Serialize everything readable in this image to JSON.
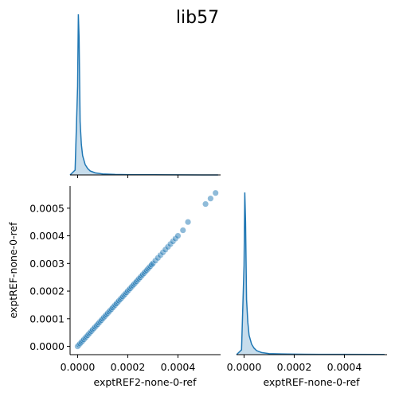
{
  "chart_data": {
    "type": "scatter",
    "title": "lib57",
    "layout": "pairplot-corner",
    "variables": [
      "exptREF2-none-0-ref",
      "exptREF-none-0-ref"
    ],
    "xlabel": "exptREF2-none-0-ref",
    "ylabel": "exptREF-none-0-ref",
    "xlabel2": "exptREF-none-0-ref",
    "xlim": [
      -3e-05,
      0.00057
    ],
    "ylim": [
      -3e-05,
      0.00058
    ],
    "xticks": [
      "0.0000",
      "0.0002",
      "0.0004"
    ],
    "yticks": [
      "0.0000",
      "0.0001",
      "0.0002",
      "0.0003",
      "0.0004",
      "0.0005"
    ],
    "xtick_values": [
      0,
      0.0002,
      0.0004
    ],
    "ytick_values": [
      0,
      0.0001,
      0.0002,
      0.0003,
      0.0004,
      0.0005
    ],
    "color": "#1f77b4",
    "grid": false,
    "scatter_points": {
      "x": [
        0.0,
        5e-06,
        1e-05,
        1.5e-05,
        2e-05,
        2.5e-05,
        3e-05,
        3.5e-05,
        4e-05,
        4.5e-05,
        5e-05,
        5.5e-05,
        6e-05,
        6.5e-05,
        7e-05,
        7.5e-05,
        8e-05,
        8.5e-05,
        9e-05,
        9.5e-05,
        0.0001,
        0.000105,
        0.00011,
        0.000115,
        0.00012,
        0.000125,
        0.00013,
        0.000135,
        0.00014,
        0.000145,
        0.00015,
        0.000155,
        0.00016,
        0.000165,
        0.00017,
        0.000175,
        0.00018,
        0.000185,
        0.00019,
        0.000195,
        0.0002,
        0.000205,
        0.00021,
        0.000215,
        0.00022,
        0.000225,
        0.00023,
        0.000235,
        0.00024,
        0.000245,
        0.00025,
        0.000255,
        0.00026,
        0.000265,
        0.00027,
        0.000275,
        0.00028,
        0.000285,
        0.00029,
        0.000295,
        0.0003,
        0.00031,
        0.00032,
        0.00033,
        0.00034,
        0.00035,
        0.00036,
        0.00037,
        0.00038,
        0.00039,
        0.0004,
        0.00042,
        0.00044,
        0.00051,
        0.00053,
        0.00055
      ],
      "y": [
        0.0,
        5e-06,
        1e-05,
        1.5e-05,
        2e-05,
        2.5e-05,
        3e-05,
        3.5e-05,
        4e-05,
        4.5e-05,
        5e-05,
        5.5e-05,
        6e-05,
        6.5e-05,
        7e-05,
        7.5e-05,
        8e-05,
        8.5e-05,
        9e-05,
        9.5e-05,
        0.0001,
        0.000105,
        0.00011,
        0.000115,
        0.00012,
        0.000125,
        0.00013,
        0.000135,
        0.00014,
        0.000145,
        0.00015,
        0.000155,
        0.00016,
        0.000165,
        0.00017,
        0.000175,
        0.00018,
        0.000185,
        0.00019,
        0.000195,
        0.0002,
        0.000205,
        0.00021,
        0.000215,
        0.00022,
        0.000225,
        0.00023,
        0.000235,
        0.00024,
        0.000245,
        0.00025,
        0.000255,
        0.00026,
        0.000265,
        0.00027,
        0.000275,
        0.00028,
        0.000285,
        0.00029,
        0.000295,
        0.0003,
        0.00031,
        0.00032,
        0.00033,
        0.00034,
        0.00035,
        0.00036,
        0.00037,
        0.00038,
        0.00039,
        0.0004,
        0.00042,
        0.00045,
        0.000515,
        0.000535,
        0.000555
      ]
    },
    "kde_top": {
      "x": [
        -3e-05,
        -1e-05,
        0.0,
        3e-06,
        6e-06,
        1e-05,
        1.5e-05,
        2e-05,
        3e-05,
        4e-05,
        5e-05,
        7e-05,
        0.0001,
        0.00015,
        0.0002,
        0.0003,
        0.0004,
        0.00056
      ],
      "density": [
        0.0,
        0.03,
        0.55,
        1.0,
        0.85,
        0.33,
        0.19,
        0.12,
        0.065,
        0.04,
        0.025,
        0.013,
        0.006,
        0.003,
        0.002,
        0.001,
        0.0005,
        0.0
      ]
    },
    "kde_bottom": {
      "x": [
        -3e-05,
        -1e-05,
        0.0,
        3e-06,
        6e-06,
        1e-05,
        1.5e-05,
        2e-05,
        3e-05,
        4e-05,
        5e-05,
        7e-05,
        0.0001,
        0.00015,
        0.0002,
        0.0003,
        0.0004,
        0.00056
      ],
      "density": [
        0.0,
        0.03,
        0.55,
        1.0,
        0.82,
        0.34,
        0.2,
        0.12,
        0.065,
        0.04,
        0.025,
        0.013,
        0.006,
        0.004,
        0.003,
        0.002,
        0.002,
        0.001
      ]
    }
  }
}
